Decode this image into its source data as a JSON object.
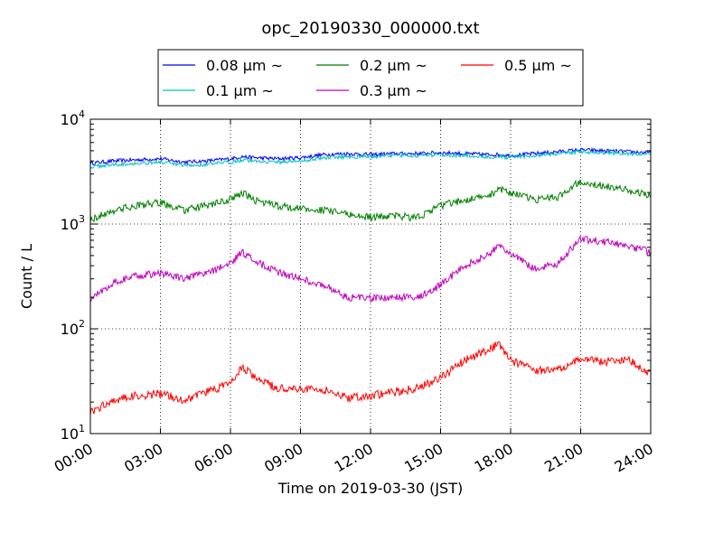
{
  "chart_data": {
    "type": "line",
    "title": "opc_20190330_000000.txt",
    "xlabel": "Time on 2019-03-30 (JST)",
    "ylabel": "Count / L",
    "x_ticks": [
      "00:00",
      "03:00",
      "06:00",
      "09:00",
      "12:00",
      "15:00",
      "18:00",
      "21:00",
      "24:00"
    ],
    "x_range_hours": [
      0,
      24
    ],
    "y_scale": "log",
    "ylim": [
      10,
      10000
    ],
    "y_ticks": [
      {
        "base": "10",
        "exp": "1"
      },
      {
        "base": "10",
        "exp": "2"
      },
      {
        "base": "10",
        "exp": "3"
      },
      {
        "base": "10",
        "exp": "4"
      }
    ],
    "grid": true,
    "legend_placement": "top-center",
    "x_hours": [
      0,
      1,
      2,
      3,
      4,
      5,
      6,
      6.5,
      7,
      8,
      9,
      10,
      11,
      12,
      13,
      14,
      15,
      16,
      17,
      17.5,
      18,
      19,
      20,
      21,
      22,
      23,
      24
    ],
    "series": [
      {
        "name": "0.08 μm ~",
        "color": "#0000ff",
        "values": [
          3800,
          4000,
          4100,
          4200,
          3900,
          4000,
          4200,
          4400,
          4300,
          4200,
          4300,
          4600,
          4700,
          4600,
          4700,
          4700,
          4800,
          4700,
          4600,
          4600,
          4500,
          4700,
          4900,
          5100,
          5000,
          4900,
          4800
        ]
      },
      {
        "name": "0.1 μm ~",
        "color": "#00bfbf",
        "values": [
          3500,
          3700,
          3800,
          3900,
          3600,
          3700,
          3900,
          4100,
          4000,
          3900,
          4000,
          4300,
          4400,
          4400,
          4500,
          4500,
          4600,
          4500,
          4400,
          4400,
          4300,
          4500,
          4700,
          4900,
          4800,
          4700,
          4600
        ]
      },
      {
        "name": "0.2 μm ~",
        "color": "#008000",
        "values": [
          1100,
          1350,
          1500,
          1600,
          1350,
          1500,
          1700,
          2000,
          1700,
          1500,
          1400,
          1350,
          1250,
          1150,
          1200,
          1150,
          1500,
          1700,
          1800,
          2200,
          2000,
          1700,
          1800,
          2600,
          2300,
          2100,
          1900
        ]
      },
      {
        "name": "0.3 μm ~",
        "color": "#bf00bf",
        "values": [
          190,
          280,
          320,
          340,
          300,
          340,
          420,
          540,
          450,
          350,
          300,
          260,
          200,
          195,
          200,
          200,
          260,
          400,
          500,
          620,
          530,
          370,
          420,
          720,
          680,
          620,
          540
        ]
      },
      {
        "name": "0.5 μm ~",
        "color": "#ff0000",
        "values": [
          16,
          21,
          23,
          24,
          21,
          25,
          30,
          43,
          35,
          27,
          27,
          26,
          22,
          23,
          25,
          27,
          34,
          50,
          62,
          72,
          50,
          40,
          40,
          52,
          48,
          52,
          37
        ]
      }
    ]
  }
}
